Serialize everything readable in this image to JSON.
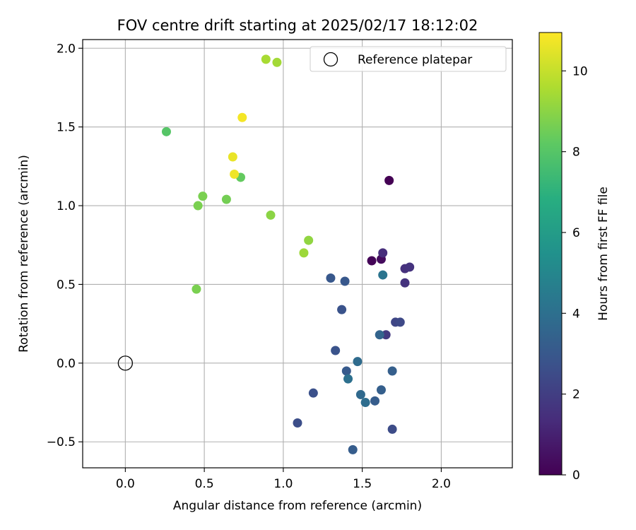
{
  "chart_data": {
    "type": "scatter",
    "title": "FOV centre drift starting at 2025/02/17 18:12:02",
    "xlabel": "Angular distance from reference (arcmin)",
    "ylabel": "Rotation from reference (arcmin)",
    "xlim": [
      -0.27,
      2.45
    ],
    "ylim": [
      -0.665,
      2.055
    ],
    "xticks": [
      0.0,
      0.5,
      1.0,
      1.5,
      2.0
    ],
    "xtick_labels": [
      "0.0",
      "0.5",
      "1.0",
      "1.5",
      "2.0"
    ],
    "yticks": [
      -0.5,
      0.0,
      0.5,
      1.0,
      1.5,
      2.0
    ],
    "ytick_labels": [
      "−0.5",
      "0.0",
      "0.5",
      "1.0",
      "1.5",
      "2.0"
    ],
    "grid": true,
    "legend": {
      "placement": "top-right",
      "entries": [
        "Reference platepar"
      ]
    },
    "reference_point": {
      "x": 0.0,
      "y": 0.0,
      "marker": "open-circle"
    },
    "colorbar": {
      "label": "Hours from first FF file",
      "colormap": "viridis",
      "range": [
        0,
        10.95
      ],
      "ticks": [
        0,
        2,
        4,
        6,
        8,
        10
      ],
      "tick_labels": [
        "0",
        "2",
        "4",
        "6",
        "8",
        "10"
      ]
    },
    "points": [
      {
        "x": 1.67,
        "y": 1.16,
        "c": 0.0
      },
      {
        "x": 1.56,
        "y": 0.65,
        "c": 0.1
      },
      {
        "x": 1.62,
        "y": 0.66,
        "c": 0.3
      },
      {
        "x": 1.63,
        "y": 0.7,
        "c": 1.4
      },
      {
        "x": 1.77,
        "y": 0.6,
        "c": 1.5
      },
      {
        "x": 1.8,
        "y": 0.61,
        "c": 1.6
      },
      {
        "x": 1.77,
        "y": 0.51,
        "c": 1.6
      },
      {
        "x": 1.65,
        "y": 0.18,
        "c": 1.8
      },
      {
        "x": 1.71,
        "y": 0.26,
        "c": 2.3
      },
      {
        "x": 1.74,
        "y": 0.26,
        "c": 2.4
      },
      {
        "x": 1.69,
        "y": -0.42,
        "c": 2.5
      },
      {
        "x": 1.09,
        "y": -0.38,
        "c": 2.6
      },
      {
        "x": 1.19,
        "y": -0.19,
        "c": 2.7
      },
      {
        "x": 1.33,
        "y": 0.08,
        "c": 2.8
      },
      {
        "x": 1.37,
        "y": 0.34,
        "c": 2.8
      },
      {
        "x": 1.3,
        "y": 0.54,
        "c": 3.0
      },
      {
        "x": 1.39,
        "y": 0.52,
        "c": 3.0
      },
      {
        "x": 1.4,
        "y": -0.05,
        "c": 3.1
      },
      {
        "x": 1.44,
        "y": -0.55,
        "c": 3.2
      },
      {
        "x": 1.58,
        "y": -0.24,
        "c": 3.2
      },
      {
        "x": 1.62,
        "y": -0.17,
        "c": 3.3
      },
      {
        "x": 1.69,
        "y": -0.05,
        "c": 3.3
      },
      {
        "x": 1.61,
        "y": 0.18,
        "c": 3.5
      },
      {
        "x": 1.49,
        "y": -0.2,
        "c": 3.7
      },
      {
        "x": 1.47,
        "y": 0.01,
        "c": 3.8
      },
      {
        "x": 1.52,
        "y": -0.25,
        "c": 3.9
      },
      {
        "x": 1.41,
        "y": -0.1,
        "c": 4.0
      },
      {
        "x": 1.63,
        "y": 0.56,
        "c": 4.2
      },
      {
        "x": 0.26,
        "y": 1.47,
        "c": 8.0
      },
      {
        "x": 0.73,
        "y": 1.18,
        "c": 8.3
      },
      {
        "x": 0.64,
        "y": 1.04,
        "c": 8.6
      },
      {
        "x": 0.46,
        "y": 1.0,
        "c": 8.7
      },
      {
        "x": 0.49,
        "y": 1.06,
        "c": 8.7
      },
      {
        "x": 0.45,
        "y": 0.47,
        "c": 8.7
      },
      {
        "x": 0.92,
        "y": 0.94,
        "c": 9.0
      },
      {
        "x": 1.16,
        "y": 0.78,
        "c": 9.1
      },
      {
        "x": 1.13,
        "y": 0.7,
        "c": 9.3
      },
      {
        "x": 0.96,
        "y": 1.91,
        "c": 9.4
      },
      {
        "x": 0.89,
        "y": 1.93,
        "c": 9.5
      },
      {
        "x": 0.68,
        "y": 1.31,
        "c": 10.6
      },
      {
        "x": 0.69,
        "y": 1.2,
        "c": 10.7
      },
      {
        "x": 0.74,
        "y": 1.56,
        "c": 10.8
      }
    ]
  }
}
